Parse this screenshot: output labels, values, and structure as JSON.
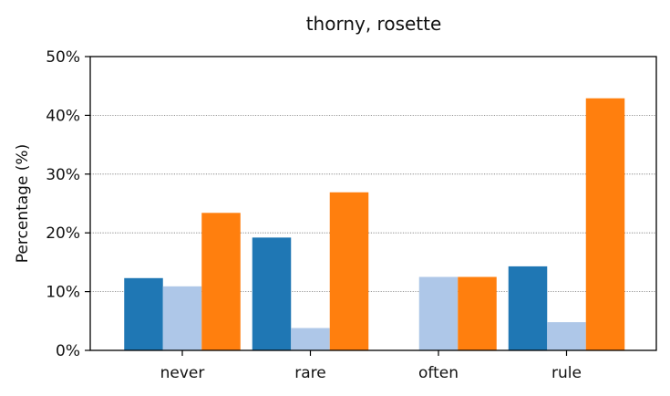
{
  "chart_data": {
    "type": "bar",
    "title": "thorny, rosette",
    "xlabel": "",
    "ylabel": "Percentage (%)",
    "categories": [
      "never",
      "rare",
      "often",
      "rule"
    ],
    "y_tick_labels": [
      "0%",
      "10%",
      "20%",
      "30%",
      "40%",
      "50%"
    ],
    "y_tick_values": [
      0,
      10,
      20,
      30,
      40,
      50
    ],
    "ylim": [
      0,
      50
    ],
    "grid": "horizontal, dotted",
    "legend": "none",
    "series": [
      {
        "color": "#1f77b4",
        "values": [
          12.3,
          19.2,
          0,
          14.3
        ]
      },
      {
        "color": "#aec7e8",
        "values": [
          10.9,
          3.8,
          12.5,
          4.8
        ]
      },
      {
        "color": "#ff7f0e",
        "values": [
          23.4,
          26.9,
          12.5,
          42.9
        ]
      }
    ]
  }
}
